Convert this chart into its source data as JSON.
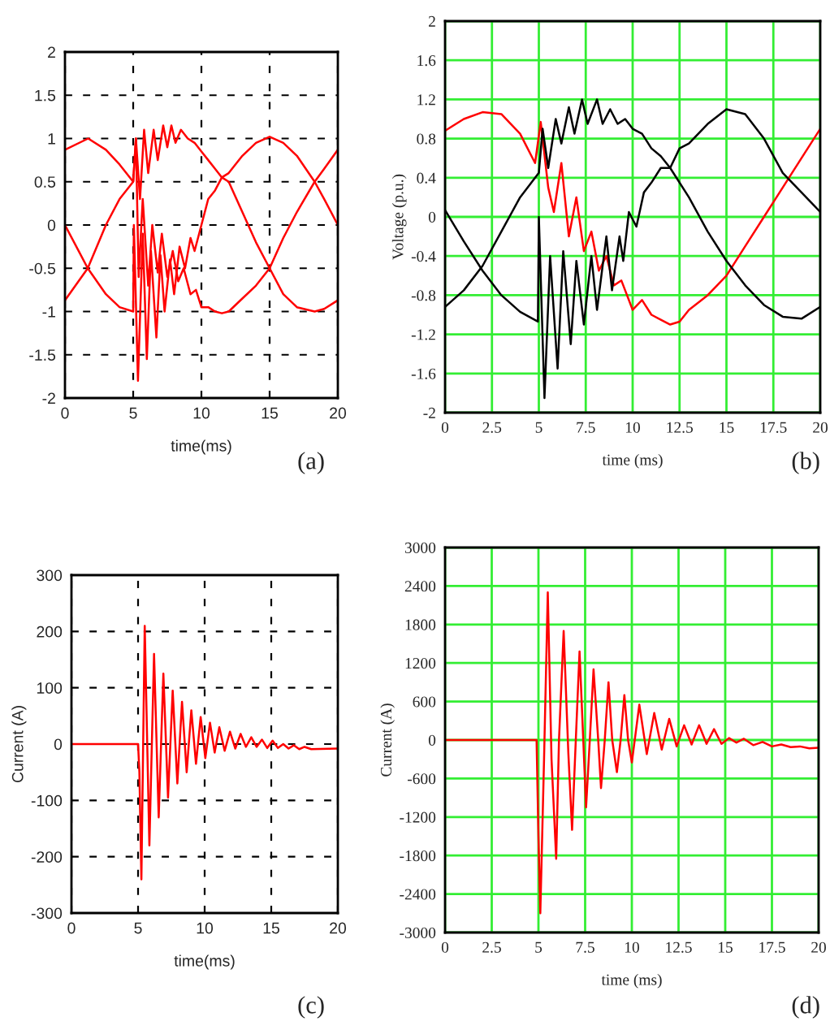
{
  "chart_data": [
    {
      "type": "line",
      "xlabel": "time(ms)",
      "xlim": [
        0,
        20
      ],
      "xticks": [
        0,
        5,
        10,
        15,
        20
      ],
      "ylim": [
        -2,
        2
      ],
      "yticks": [
        -2,
        -1.5,
        -1,
        -0.5,
        0,
        0.5,
        1,
        1.5,
        2
      ],
      "grid": true,
      "annotations": [
        "(a)"
      ],
      "series": [
        {
          "color": "#ff0000",
          "x": [
            0,
            1.7,
            3,
            4,
            5,
            5.2,
            5.5,
            5.8,
            6.1,
            6.5,
            6.8,
            7.2,
            7.5,
            7.8,
            8.1,
            8.5,
            9,
            9.5,
            10,
            10.5,
            11,
            11.5,
            12,
            13,
            14,
            15,
            16,
            17,
            18.3,
            19,
            20
          ],
          "values": [
            0.87,
            1.0,
            0.87,
            0.7,
            0.5,
            1.0,
            0.3,
            1.1,
            0.6,
            1.1,
            0.75,
            1.15,
            0.9,
            1.15,
            0.95,
            1.1,
            1.0,
            0.95,
            0.85,
            0.75,
            0.65,
            0.55,
            0.5,
            0.15,
            -0.2,
            -0.5,
            -0.8,
            -0.95,
            -1.0,
            -0.97,
            -0.87
          ]
        },
        {
          "color": "#ff0000",
          "x": [
            0,
            1,
            1.67,
            3,
            4,
            5,
            5.05,
            5.35,
            5.7,
            6.0,
            6.3,
            6.7,
            7.0,
            7.3,
            7.7,
            8.0,
            8.4,
            8.8,
            9.2,
            9.5,
            10,
            10.5,
            11,
            11.5,
            12,
            13,
            14,
            15,
            16,
            17,
            18.3,
            19,
            20
          ],
          "values": [
            0,
            -0.3,
            -0.5,
            -0.8,
            -0.95,
            -1.0,
            0.0,
            -1.8,
            -0.1,
            -1.55,
            -0.3,
            -1.3,
            -0.35,
            -1.0,
            -0.4,
            -0.8,
            -0.25,
            -0.5,
            -0.15,
            -0.3,
            0.0,
            0.3,
            0.4,
            0.55,
            0.6,
            0.8,
            0.95,
            1.02,
            0.95,
            0.8,
            0.5,
            0.3,
            0.0
          ]
        },
        {
          "color": "#ff0000",
          "x": [
            0,
            1.67,
            3,
            4,
            5,
            5.2,
            5.4,
            5.7,
            6.1,
            6.4,
            6.8,
            7.1,
            7.5,
            7.9,
            8.3,
            8.7,
            9.2,
            9.6,
            10,
            10.5,
            11,
            11.5,
            12,
            13,
            14,
            15,
            16,
            17,
            18.3,
            19,
            20
          ],
          "values": [
            -0.87,
            -0.5,
            0.0,
            0.3,
            0.5,
            1.0,
            -0.6,
            0.3,
            -0.7,
            0.0,
            -0.55,
            -0.1,
            -0.6,
            -0.3,
            -0.65,
            -0.5,
            -0.8,
            -0.75,
            -0.95,
            -0.95,
            -1.0,
            -1.02,
            -1.0,
            -0.85,
            -0.7,
            -0.5,
            -0.15,
            0.15,
            0.5,
            0.65,
            0.87
          ]
        }
      ]
    },
    {
      "type": "line",
      "xlabel": "time (ms)",
      "ylabel": "Voltage (p.u.)",
      "xlim": [
        0,
        20
      ],
      "xticks": [
        0,
        2.5,
        5,
        7.5,
        10,
        12.5,
        15,
        17.5,
        20
      ],
      "ylim": [
        -2,
        2
      ],
      "yticks": [
        -2,
        -1.6,
        -1.2,
        -0.8,
        -0.4,
        0,
        0.4,
        0.8,
        1.2,
        1.6,
        2
      ],
      "grid": true,
      "annotations": [
        "(b)"
      ],
      "series": [
        {
          "color": "#ff0000",
          "x": [
            0,
            1,
            2,
            3,
            4,
            4.8,
            5.1,
            5.5,
            5.8,
            6.2,
            6.6,
            7,
            7.4,
            7.8,
            8.2,
            8.6,
            9,
            9.4,
            10,
            10.5,
            11,
            11.5,
            12,
            12.5,
            13,
            14,
            15,
            16,
            17,
            18,
            19,
            20
          ],
          "values": [
            0.88,
            1.0,
            1.07,
            1.05,
            0.85,
            0.55,
            0.97,
            0.3,
            0.05,
            0.55,
            -0.2,
            0.2,
            -0.35,
            -0.15,
            -0.55,
            -0.4,
            -0.7,
            -0.65,
            -0.95,
            -0.85,
            -1.0,
            -1.05,
            -1.1,
            -1.07,
            -0.95,
            -0.8,
            -0.6,
            -0.3,
            0.0,
            0.3,
            0.6,
            0.9
          ]
        },
        {
          "color": "#000000",
          "x": [
            0,
            1,
            2,
            3,
            4,
            5,
            5.2,
            5.5,
            5.9,
            6.2,
            6.6,
            6.9,
            7.3,
            7.6,
            8.1,
            8.4,
            8.8,
            9.2,
            9.6,
            10,
            10.5,
            11,
            11.5,
            12,
            13,
            14,
            15,
            16,
            17,
            18,
            19,
            20
          ],
          "values": [
            -0.92,
            -0.75,
            -0.5,
            -0.15,
            0.2,
            0.45,
            0.9,
            0.5,
            1.0,
            0.75,
            1.12,
            0.85,
            1.2,
            0.95,
            1.2,
            0.95,
            1.1,
            0.95,
            1.0,
            0.9,
            0.85,
            0.7,
            0.62,
            0.5,
            0.2,
            -0.15,
            -0.45,
            -0.7,
            -0.9,
            -1.02,
            -1.04,
            -0.92
          ]
        },
        {
          "color": "#000000",
          "x": [
            0,
            1,
            2,
            3,
            4,
            4.95,
            5.0,
            5.3,
            5.6,
            6.0,
            6.3,
            6.7,
            7.0,
            7.4,
            7.8,
            8.1,
            8.6,
            8.9,
            9.3,
            9.5,
            9.8,
            10.2,
            10.6,
            11,
            11.5,
            12,
            12.5,
            13,
            14,
            15,
            16,
            17,
            18,
            19,
            20
          ],
          "values": [
            0.07,
            -0.25,
            -0.55,
            -0.8,
            -0.97,
            -1.07,
            0.0,
            -1.85,
            -0.4,
            -1.55,
            -0.35,
            -1.3,
            -0.45,
            -1.1,
            -0.4,
            -0.95,
            -0.2,
            -0.75,
            -0.2,
            -0.45,
            0.05,
            -0.1,
            0.25,
            0.35,
            0.5,
            0.5,
            0.7,
            0.75,
            0.95,
            1.1,
            1.05,
            0.8,
            0.45,
            0.25,
            0.05
          ]
        }
      ]
    },
    {
      "type": "line",
      "xlabel": "time(ms)",
      "ylabel": "Current (A)",
      "xlim": [
        0,
        20
      ],
      "xticks": [
        0,
        5,
        10,
        15,
        20
      ],
      "ylim": [
        -300,
        300
      ],
      "yticks": [
        -300,
        -200,
        -100,
        0,
        100,
        200,
        300
      ],
      "grid": true,
      "annotations": [
        "(c)"
      ],
      "series": [
        {
          "color": "#ff0000",
          "x": [
            0,
            5,
            5.1,
            5.25,
            5.5,
            5.85,
            6.2,
            6.55,
            6.9,
            7.25,
            7.6,
            7.95,
            8.3,
            8.65,
            9.0,
            9.35,
            9.7,
            10.05,
            10.4,
            10.75,
            11.1,
            11.5,
            11.9,
            12.3,
            12.7,
            13.1,
            13.5,
            13.9,
            14.3,
            14.7,
            15.1,
            15.5,
            15.9,
            16.3,
            16.7,
            17.1,
            17.5,
            18,
            20
          ],
          "values": [
            0,
            0,
            -50,
            -240,
            210,
            -180,
            160,
            -130,
            125,
            -95,
            95,
            -70,
            75,
            -50,
            60,
            -35,
            48,
            -25,
            38,
            -15,
            30,
            -12,
            22,
            -8,
            18,
            -5,
            12,
            -5,
            8,
            -7,
            6,
            -7,
            0,
            -8,
            -2,
            -9,
            -5,
            -9,
            -8
          ]
        }
      ]
    },
    {
      "type": "line",
      "xlabel": "time (ms)",
      "ylabel": "Current (A)",
      "xlim": [
        0,
        20
      ],
      "xticks": [
        0,
        2.5,
        5,
        7.5,
        10,
        12.5,
        15,
        17.5,
        20
      ],
      "ylim": [
        -3000,
        3000
      ],
      "yticks": [
        -3000,
        -2400,
        -1800,
        -1200,
        -600,
        0,
        600,
        1200,
        1800,
        2400,
        3000
      ],
      "grid": true,
      "annotations": [
        "(d)"
      ],
      "series": [
        {
          "color": "#ff0000",
          "x": [
            0,
            4.9,
            5.0,
            5.1,
            5.3,
            5.5,
            5.7,
            5.95,
            6.1,
            6.35,
            6.6,
            6.8,
            7.0,
            7.2,
            7.4,
            7.55,
            7.75,
            7.95,
            8.2,
            8.35,
            8.55,
            8.75,
            8.95,
            9.2,
            9.4,
            9.6,
            9.8,
            10.0,
            10.4,
            10.8,
            11.2,
            11.6,
            12.0,
            12.4,
            12.8,
            13.2,
            13.6,
            14.0,
            14.4,
            14.8,
            15.2,
            15.6,
            16.0,
            16.5,
            17.0,
            17.5,
            18.0,
            18.5,
            19.0,
            19.5,
            20
          ],
          "values": [
            0,
            0,
            -1500,
            -2700,
            -300,
            2300,
            -300,
            -1850,
            0,
            1700,
            -200,
            -1400,
            0,
            1380,
            0,
            -1050,
            0,
            1100,
            0,
            -750,
            0,
            900,
            0,
            -500,
            0,
            700,
            0,
            -350,
            550,
            -220,
            420,
            -150,
            330,
            -100,
            230,
            -70,
            230,
            -60,
            170,
            -60,
            30,
            -40,
            20,
            -80,
            -30,
            -100,
            -70,
            -110,
            -100,
            -130,
            -120
          ]
        }
      ]
    }
  ]
}
